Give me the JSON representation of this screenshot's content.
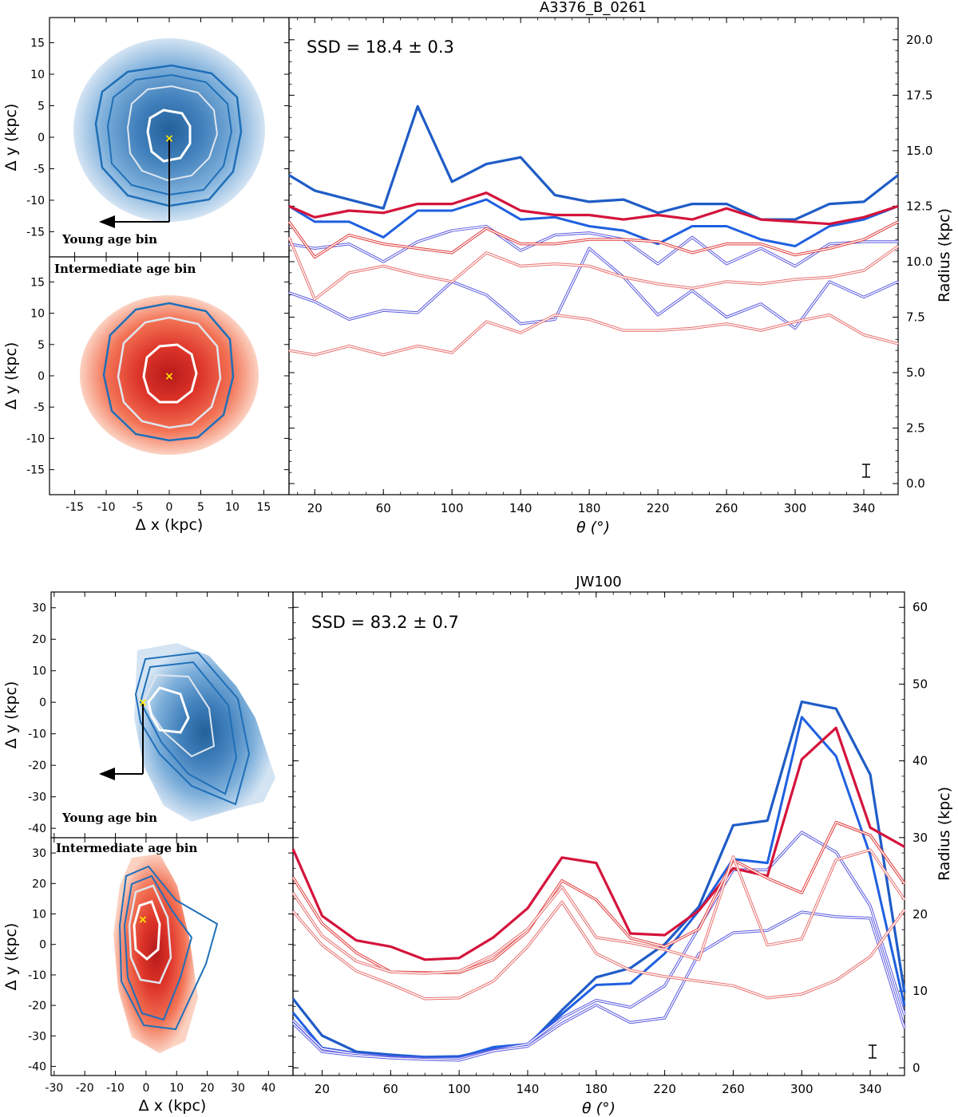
{
  "figure": {
    "panels": [
      {
        "title": "A3376_B_0261",
        "ssd_text": "SSD = 18.4 ± 0.3",
        "map_labels": {
          "young": "Young age bin",
          "intermediate": "Intermediate age bin"
        },
        "map_axes": {
          "xlabel": "Δ x (kpc)",
          "ylabel": "Δ y (kpc)",
          "xticks": [
            -15,
            -10,
            -5,
            0,
            5,
            10,
            15
          ],
          "yticks": [
            -15,
            -10,
            -5,
            0,
            5,
            10,
            15
          ],
          "xlim": [
            -19,
            19
          ],
          "ylim": [
            -19,
            19
          ]
        }
      },
      {
        "title": "JW100",
        "ssd_text": "SSD = 83.2 ± 0.7",
        "map_labels": {
          "young": "Young age bin",
          "intermediate": "Intermediate age bin"
        },
        "map_axes": {
          "xlabel": "Δ x (kpc)",
          "ylabel": "Δ y (kpc)",
          "xticks": [
            -30,
            -20,
            -10,
            0,
            10,
            20,
            30,
            40
          ],
          "yticks": [
            -40,
            -30,
            -20,
            -10,
            0,
            10,
            20,
            30
          ],
          "xlim": [
            -31,
            48
          ],
          "ylim": [
            -43,
            35
          ]
        }
      }
    ],
    "colors": {
      "young": "#1f77b4",
      "intermediate": "#e8482f",
      "center_marker": "#ffe600",
      "blue_dark": "#1f5cc6",
      "blue_mid": "#1f60e0",
      "blue_light": "#5a5ae0",
      "red_dark": "#d4143c",
      "red_mid": "#e03a3a",
      "red_light": "#e87070"
    }
  },
  "chart_data": [
    {
      "type": "line",
      "title": "A3376_B_0261",
      "xlabel": "θ (°)",
      "ylabel": "Radius (kpc)",
      "xlim": [
        5,
        360
      ],
      "ylim": [
        -0.5,
        21
      ],
      "xticks": [
        20,
        60,
        100,
        140,
        180,
        220,
        260,
        300,
        340
      ],
      "yticks": [
        0.0,
        2.5,
        5.0,
        7.5,
        10.0,
        12.5,
        15.0,
        17.5,
        20.0
      ],
      "x": [
        5,
        20,
        40,
        60,
        80,
        100,
        120,
        140,
        160,
        180,
        200,
        220,
        240,
        260,
        280,
        300,
        320,
        340,
        360
      ],
      "series": [
        {
          "group": "young",
          "level": 1,
          "values": [
            13.9,
            13.2,
            12.8,
            12.4,
            17.0,
            13.6,
            14.4,
            14.7,
            13.0,
            12.7,
            12.8,
            12.2,
            12.6,
            12.6,
            11.9,
            11.9,
            12.6,
            12.7,
            13.9
          ]
        },
        {
          "group": "young",
          "level": 2,
          "values": [
            12.5,
            11.8,
            11.8,
            11.1,
            12.3,
            12.3,
            12.8,
            11.9,
            12.0,
            11.6,
            11.4,
            10.8,
            11.6,
            11.6,
            11.0,
            10.7,
            11.6,
            11.9,
            12.5
          ]
        },
        {
          "group": "young",
          "level": 3,
          "values": [
            10.8,
            10.6,
            10.8,
            10.0,
            10.9,
            11.4,
            11.6,
            10.5,
            11.2,
            11.3,
            11.0,
            9.9,
            11.1,
            9.9,
            10.6,
            9.8,
            10.8,
            10.9,
            10.9
          ]
        },
        {
          "group": "young",
          "level": 4,
          "values": [
            8.6,
            8.2,
            7.4,
            7.8,
            7.7,
            9.1,
            8.5,
            7.2,
            7.4,
            10.6,
            9.3,
            7.6,
            8.7,
            7.5,
            8.1,
            7.0,
            9.1,
            8.4,
            9.1
          ]
        },
        {
          "group": "intermediate",
          "level": 1,
          "values": [
            12.5,
            12.0,
            12.3,
            12.2,
            12.6,
            12.6,
            13.1,
            12.3,
            12.1,
            12.1,
            11.9,
            12.1,
            11.9,
            12.4,
            11.9,
            11.8,
            11.7,
            12.0,
            12.5
          ]
        },
        {
          "group": "intermediate",
          "level": 2,
          "values": [
            11.8,
            10.2,
            11.2,
            10.8,
            10.6,
            10.4,
            11.5,
            10.8,
            10.8,
            11.0,
            11.0,
            10.9,
            10.4,
            10.8,
            10.8,
            10.3,
            10.6,
            11.0,
            11.8
          ]
        },
        {
          "group": "intermediate",
          "level": 3,
          "values": [
            11.1,
            8.3,
            9.5,
            9.8,
            9.4,
            9.1,
            10.4,
            9.8,
            9.9,
            9.8,
            9.3,
            9.0,
            8.8,
            9.1,
            9.0,
            9.2,
            9.3,
            9.6,
            10.7
          ]
        },
        {
          "group": "intermediate",
          "level": 4,
          "values": [
            6.0,
            5.8,
            6.2,
            5.8,
            6.2,
            5.9,
            7.3,
            6.8,
            7.6,
            7.4,
            6.9,
            6.9,
            7.0,
            7.2,
            6.9,
            7.3,
            7.6,
            6.7,
            6.3
          ]
        }
      ]
    },
    {
      "type": "line",
      "title": "JW100",
      "xlabel": "θ (°)",
      "ylabel": "Radius (kpc)",
      "xlim": [
        3,
        360
      ],
      "ylim": [
        -1,
        62
      ],
      "xticks": [
        20,
        60,
        100,
        140,
        180,
        220,
        260,
        300,
        340
      ],
      "yticks": [
        0,
        10,
        20,
        30,
        40,
        50,
        60
      ],
      "x": [
        3,
        20,
        40,
        60,
        80,
        100,
        120,
        140,
        160,
        180,
        200,
        220,
        240,
        260,
        280,
        300,
        320,
        340,
        360
      ],
      "series": [
        {
          "group": "young",
          "level": 1,
          "values": [
            9.0,
            4.2,
            2.1,
            1.7,
            1.4,
            1.5,
            2.4,
            2.9,
            7.5,
            11.8,
            13.0,
            16.1,
            21.0,
            31.6,
            32.2,
            47.7,
            46.8,
            38.2,
            9.8
          ]
        },
        {
          "group": "young",
          "level": 2,
          "values": [
            7.2,
            2.6,
            1.9,
            1.5,
            1.4,
            1.4,
            2.7,
            3.1,
            7.0,
            10.8,
            11.0,
            14.9,
            20.5,
            27.2,
            26.7,
            45.7,
            40.6,
            27.7,
            8.1
          ]
        },
        {
          "group": "young",
          "level": 3,
          "values": [
            6.2,
            2.5,
            1.8,
            1.4,
            1.2,
            1.2,
            2.3,
            3.1,
            6.5,
            8.8,
            7.9,
            10.7,
            18.3,
            25.8,
            25.8,
            30.7,
            28.1,
            21.1,
            6.9
          ]
        },
        {
          "group": "young",
          "level": 4,
          "values": [
            5.8,
            2.1,
            1.6,
            1.3,
            1.1,
            1.0,
            2.2,
            2.8,
            5.8,
            8.2,
            5.9,
            6.5,
            14.9,
            17.6,
            17.9,
            20.3,
            19.7,
            19.5,
            5.2
          ]
        },
        {
          "group": "intermediate",
          "level": 1,
          "values": [
            28.5,
            19.8,
            16.6,
            15.8,
            14.1,
            14.3,
            17.0,
            20.8,
            27.4,
            26.7,
            17.5,
            17.3,
            20.5,
            26.0,
            25.0,
            40.2,
            44.3,
            31.3,
            28.8
          ]
        },
        {
          "group": "intermediate",
          "level": 2,
          "values": [
            24.8,
            18.8,
            15.0,
            12.5,
            12.4,
            12.4,
            14.1,
            17.8,
            24.4,
            21.9,
            16.9,
            15.8,
            18.1,
            27.1,
            24.7,
            22.8,
            32.0,
            30.3,
            24.0
          ]
        },
        {
          "group": "intermediate",
          "level": 3,
          "values": [
            22.8,
            17.2,
            13.9,
            12.5,
            12.3,
            12.6,
            14.7,
            18.1,
            23.6,
            17.0,
            16.3,
            15.4,
            14.1,
            27.5,
            16.0,
            16.8,
            27.1,
            28.4,
            21.9
          ]
        },
        {
          "group": "intermediate",
          "level": 4,
          "values": [
            20.4,
            16.0,
            12.6,
            10.9,
            9.0,
            9.1,
            11.3,
            15.8,
            21.6,
            14.9,
            12.7,
            11.9,
            11.3,
            10.7,
            9.1,
            9.6,
            11.4,
            14.5,
            20.6
          ]
        }
      ]
    }
  ]
}
